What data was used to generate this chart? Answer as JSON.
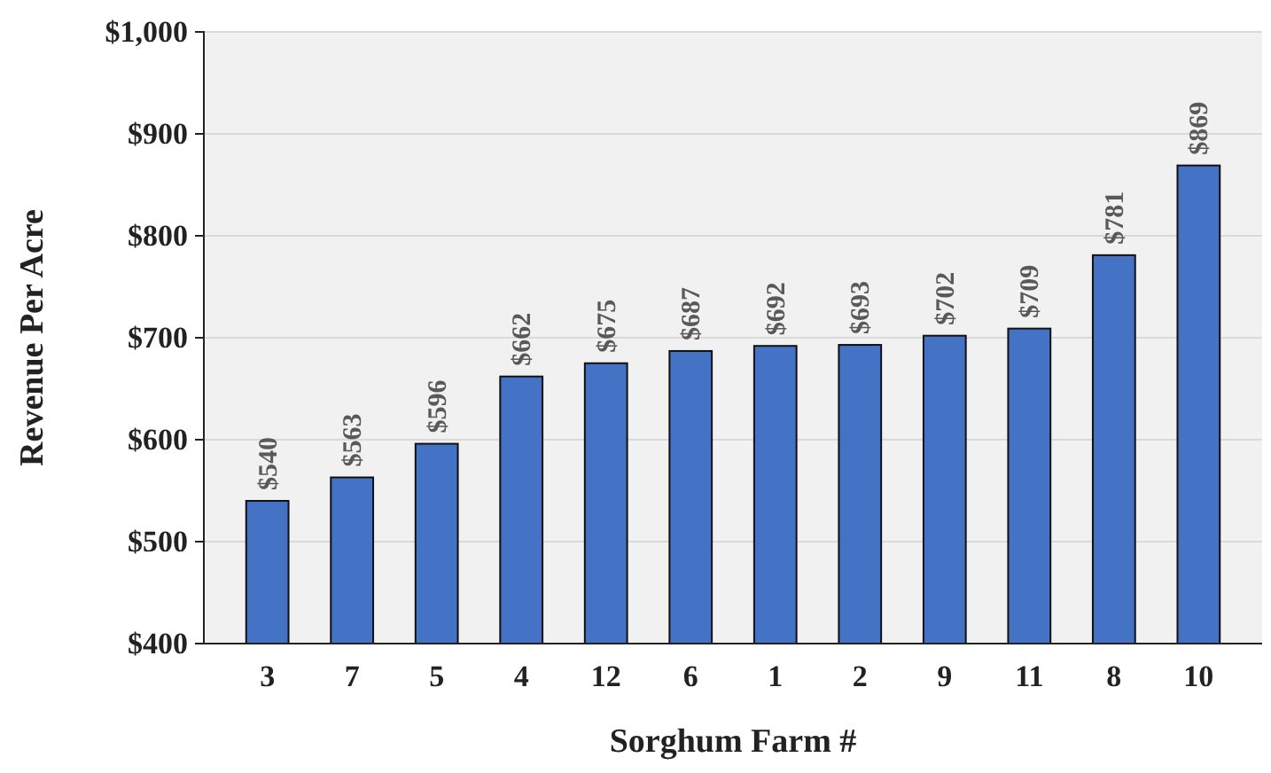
{
  "chart_data": {
    "type": "bar",
    "xlabel": "Sorghum Farm #",
    "ylabel": "Revenue Per Acre",
    "categories": [
      "3",
      "7",
      "5",
      "4",
      "12",
      "6",
      "1",
      "2",
      "9",
      "11",
      "8",
      "10"
    ],
    "values": [
      540,
      563,
      596,
      662,
      675,
      687,
      692,
      693,
      702,
      709,
      781,
      869
    ],
    "value_labels": [
      "$540",
      "$563",
      "$596",
      "$662",
      "$675",
      "$687",
      "$692",
      "$693",
      "$702",
      "$709",
      "$781",
      "$869"
    ],
    "color": "#4472c4",
    "ylim": [
      400,
      1000
    ],
    "yticks": [
      {
        "value": 400,
        "label": "$400"
      },
      {
        "value": 500,
        "label": "$500"
      },
      {
        "value": 600,
        "label": "$600"
      },
      {
        "value": 700,
        "label": "$700"
      },
      {
        "value": 800,
        "label": "$800"
      },
      {
        "value": 900,
        "label": "$900"
      },
      {
        "value": 1000,
        "label": "$1,000"
      }
    ],
    "grid": "y"
  }
}
